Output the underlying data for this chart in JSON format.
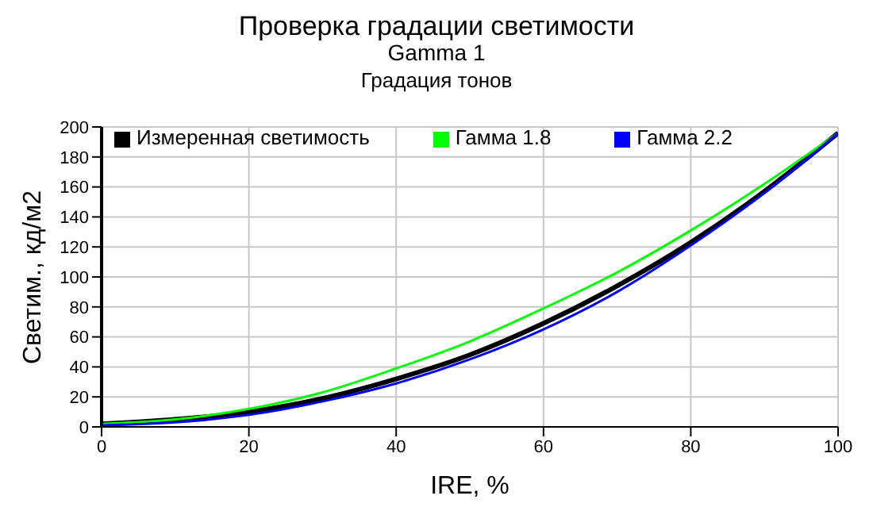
{
  "chart_data": {
    "type": "line",
    "title": "Проверка градации светимости",
    "subtitle": "Gamma 1",
    "annotations": [
      "Градация тонов"
    ],
    "xlabel": "IRE, %",
    "ylabel": "Светим., кд/м2",
    "x": [
      0,
      10,
      20,
      30,
      40,
      50,
      60,
      70,
      80,
      90,
      100
    ],
    "series": [
      {
        "name": "Измеренная светимость",
        "color": "#000000",
        "values": [
          2,
          5,
          10,
          19,
          32,
          48,
          69,
          94,
          123,
          157,
          196
        ]
      },
      {
        "name": "Гамма 1.8",
        "color": "#00ff00",
        "values": [
          2,
          5,
          12,
          23,
          39,
          57,
          79,
          103,
          131,
          162,
          196
        ]
      },
      {
        "name": "Гамма 2.2",
        "color": "#0000ff",
        "values": [
          1,
          3,
          8,
          17,
          29,
          45,
          65,
          90,
          121,
          156,
          196
        ]
      }
    ],
    "xlim": [
      0,
      100
    ],
    "xticks": [
      0,
      20,
      40,
      60,
      80,
      100
    ],
    "ylim": [
      0,
      200
    ],
    "yticks": [
      0,
      20,
      40,
      60,
      80,
      100,
      120,
      140,
      160,
      180,
      200
    ],
    "grid": true,
    "legend": "top left",
    "marker": "none",
    "line_style": "solid"
  }
}
